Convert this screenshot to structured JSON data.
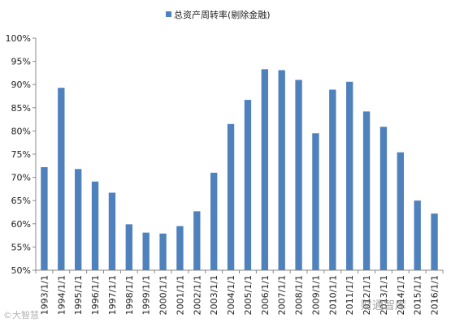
{
  "chart_data": {
    "type": "bar",
    "legend": {
      "label": "总资产周转率(剔除金融)",
      "position": "top-center"
    },
    "color": "#4f81bd",
    "categories": [
      "1993/1/1",
      "1994/1/1",
      "1995/1/1",
      "1996/1/1",
      "1997/1/1",
      "1998/1/1",
      "1999/1/1",
      "2000/1/1",
      "2001/1/1",
      "2002/1/1",
      "2003/1/1",
      "2004/1/1",
      "2005/1/1",
      "2006/1/1",
      "2007/1/1",
      "2008/1/1",
      "2009/1/1",
      "2010/1/1",
      "2011/1/1",
      "2012/1/1",
      "2013/1/1",
      "2014/1/1",
      "2015/1/1",
      "2016/1/1"
    ],
    "values": [
      72.2,
      89.3,
      71.8,
      69.1,
      66.7,
      59.9,
      58.1,
      57.9,
      59.5,
      62.7,
      71.0,
      81.5,
      86.7,
      93.3,
      93.1,
      91.0,
      79.5,
      88.9,
      90.6,
      84.2,
      80.9,
      75.4,
      65.0,
      62.2
    ],
    "ylim": [
      50,
      100
    ],
    "yticks": [
      "50%",
      "55%",
      "60%",
      "65%",
      "70%",
      "75%",
      "80%",
      "85%",
      "90%",
      "95%",
      "100%"
    ],
    "grid": false
  },
  "watermarks": {
    "left": "©大智慧",
    "right": "财通智库"
  }
}
